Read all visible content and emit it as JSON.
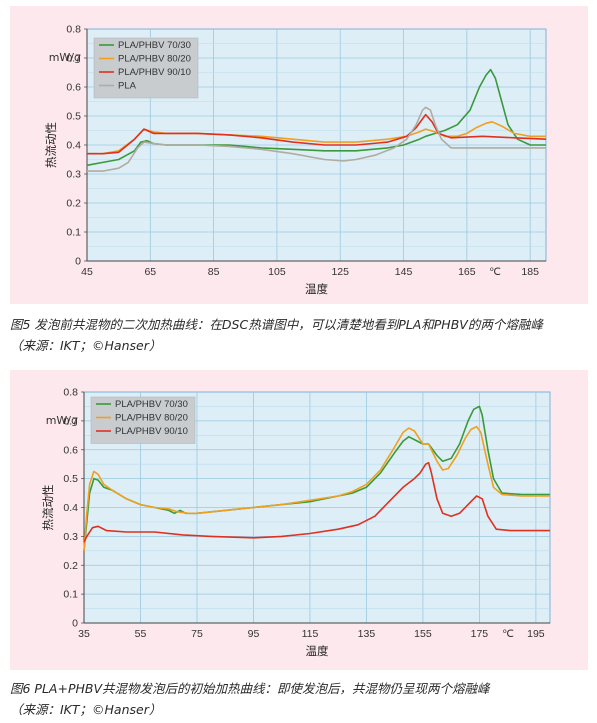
{
  "chart_data": [
    {
      "type": "line",
      "ylabel": "热流动性",
      "unit_label": "mW/g",
      "xlabel": "温度",
      "x_unit_tick": "℃",
      "x_ticks": [
        "45",
        "65",
        "85",
        "105",
        "125",
        "145",
        "165",
        "185"
      ],
      "y_ticks": [
        "0",
        "0.1",
        "0.2",
        "0.3",
        "0.4",
        "0.5",
        "0.6",
        "0.7",
        "0.8"
      ],
      "xlim": [
        45,
        190
      ],
      "ylim": [
        0,
        0.8
      ],
      "grid": true,
      "legend_position": "top-left",
      "series": [
        {
          "name": "PLA/PHBV 70/30",
          "color": "#3a9a3a",
          "points": [
            [
              45,
              0.33
            ],
            [
              50,
              0.34
            ],
            [
              55,
              0.35
            ],
            [
              60,
              0.38
            ],
            [
              62,
              0.41
            ],
            [
              64,
              0.415
            ],
            [
              66,
              0.405
            ],
            [
              70,
              0.4
            ],
            [
              80,
              0.4
            ],
            [
              90,
              0.4
            ],
            [
              100,
              0.39
            ],
            [
              110,
              0.385
            ],
            [
              120,
              0.38
            ],
            [
              130,
              0.38
            ],
            [
              140,
              0.39
            ],
            [
              145,
              0.4
            ],
            [
              150,
              0.42
            ],
            [
              152,
              0.43
            ],
            [
              155,
              0.44
            ],
            [
              158,
              0.45
            ],
            [
              162,
              0.47
            ],
            [
              166,
              0.52
            ],
            [
              169,
              0.6
            ],
            [
              171,
              0.64
            ],
            [
              172.5,
              0.66
            ],
            [
              174,
              0.63
            ],
            [
              176,
              0.55
            ],
            [
              178,
              0.47
            ],
            [
              181,
              0.42
            ],
            [
              185,
              0.4
            ],
            [
              190,
              0.4
            ]
          ]
        },
        {
          "name": "PLA/PHBV 80/20",
          "color": "#f0a020",
          "points": [
            [
              45,
              0.37
            ],
            [
              50,
              0.37
            ],
            [
              55,
              0.38
            ],
            [
              60,
              0.42
            ],
            [
              63,
              0.455
            ],
            [
              66,
              0.445
            ],
            [
              70,
              0.44
            ],
            [
              80,
              0.44
            ],
            [
              90,
              0.435
            ],
            [
              100,
              0.43
            ],
            [
              110,
              0.42
            ],
            [
              120,
              0.41
            ],
            [
              130,
              0.41
            ],
            [
              140,
              0.42
            ],
            [
              146,
              0.43
            ],
            [
              150,
              0.445
            ],
            [
              152,
              0.455
            ],
            [
              155,
              0.445
            ],
            [
              158,
              0.43
            ],
            [
              162,
              0.43
            ],
            [
              165,
              0.44
            ],
            [
              168,
              0.46
            ],
            [
              171,
              0.475
            ],
            [
              173,
              0.48
            ],
            [
              176,
              0.465
            ],
            [
              180,
              0.44
            ],
            [
              185,
              0.43
            ],
            [
              190,
              0.43
            ]
          ]
        },
        {
          "name": "PLA/PHBV 90/10",
          "color": "#e03020",
          "points": [
            [
              45,
              0.37
            ],
            [
              50,
              0.37
            ],
            [
              55,
              0.375
            ],
            [
              60,
              0.42
            ],
            [
              63,
              0.455
            ],
            [
              66,
              0.44
            ],
            [
              70,
              0.44
            ],
            [
              80,
              0.44
            ],
            [
              90,
              0.435
            ],
            [
              100,
              0.425
            ],
            [
              110,
              0.41
            ],
            [
              120,
              0.4
            ],
            [
              130,
              0.4
            ],
            [
              140,
              0.41
            ],
            [
              146,
              0.43
            ],
            [
              149,
              0.46
            ],
            [
              151,
              0.49
            ],
            [
              152,
              0.505
            ],
            [
              154,
              0.48
            ],
            [
              156,
              0.44
            ],
            [
              160,
              0.425
            ],
            [
              170,
              0.43
            ],
            [
              180,
              0.425
            ],
            [
              190,
              0.42
            ]
          ]
        },
        {
          "name": "PLA",
          "color": "#b0aca0",
          "points": [
            [
              45,
              0.31
            ],
            [
              50,
              0.31
            ],
            [
              55,
              0.32
            ],
            [
              58,
              0.34
            ],
            [
              61,
              0.39
            ],
            [
              63,
              0.41
            ],
            [
              66,
              0.405
            ],
            [
              70,
              0.4
            ],
            [
              80,
              0.4
            ],
            [
              90,
              0.395
            ],
            [
              100,
              0.385
            ],
            [
              110,
              0.37
            ],
            [
              120,
              0.35
            ],
            [
              126,
              0.345
            ],
            [
              130,
              0.35
            ],
            [
              136,
              0.365
            ],
            [
              142,
              0.39
            ],
            [
              146,
              0.42
            ],
            [
              149,
              0.47
            ],
            [
              151,
              0.52
            ],
            [
              152,
              0.53
            ],
            [
              153.5,
              0.52
            ],
            [
              155,
              0.47
            ],
            [
              157,
              0.42
            ],
            [
              160,
              0.39
            ],
            [
              170,
              0.39
            ],
            [
              190,
              0.39
            ]
          ]
        }
      ]
    },
    {
      "type": "line",
      "ylabel": "热流动性",
      "unit_label": "mW/g",
      "xlabel": "温度",
      "x_unit_tick": "℃",
      "x_ticks": [
        "35",
        "55",
        "75",
        "95",
        "115",
        "135",
        "155",
        "175",
        "195"
      ],
      "y_ticks": [
        "0",
        "0.1",
        "0.2",
        "0.3",
        "0.4",
        "0.5",
        "0.6",
        "0.7",
        "0.8"
      ],
      "xlim": [
        35,
        200
      ],
      "ylim": [
        0,
        0.8
      ],
      "grid": true,
      "legend_position": "top-left",
      "series": [
        {
          "name": "PLA/PHBV 70/30",
          "color": "#3a9a3a",
          "points": [
            [
              35,
              0.25
            ],
            [
              36,
              0.35
            ],
            [
              37,
              0.45
            ],
            [
              38.5,
              0.5
            ],
            [
              40,
              0.495
            ],
            [
              42,
              0.47
            ],
            [
              45,
              0.46
            ],
            [
              50,
              0.43
            ],
            [
              55,
              0.41
            ],
            [
              60,
              0.4
            ],
            [
              65,
              0.39
            ],
            [
              67,
              0.38
            ],
            [
              69,
              0.39
            ],
            [
              71,
              0.38
            ],
            [
              75,
              0.38
            ],
            [
              85,
              0.39
            ],
            [
              95,
              0.4
            ],
            [
              105,
              0.41
            ],
            [
              115,
              0.42
            ],
            [
              125,
              0.44
            ],
            [
              130,
              0.45
            ],
            [
              135,
              0.47
            ],
            [
              140,
              0.52
            ],
            [
              145,
              0.59
            ],
            [
              148,
              0.63
            ],
            [
              150,
              0.645
            ],
            [
              152,
              0.635
            ],
            [
              155,
              0.62
            ],
            [
              157,
              0.62
            ],
            [
              160,
              0.58
            ],
            [
              162,
              0.56
            ],
            [
              165,
              0.57
            ],
            [
              168,
              0.62
            ],
            [
              171,
              0.7
            ],
            [
              173,
              0.74
            ],
            [
              175,
              0.75
            ],
            [
              176,
              0.72
            ],
            [
              178,
              0.6
            ],
            [
              180,
              0.5
            ],
            [
              183,
              0.45
            ],
            [
              190,
              0.445
            ],
            [
              200,
              0.445
            ]
          ]
        },
        {
          "name": "PLA/PHBV 80/20",
          "color": "#f0a020",
          "points": [
            [
              35,
              0.25
            ],
            [
              36,
              0.38
            ],
            [
              37,
              0.48
            ],
            [
              38.5,
              0.525
            ],
            [
              40,
              0.515
            ],
            [
              42,
              0.48
            ],
            [
              45,
              0.46
            ],
            [
              50,
              0.43
            ],
            [
              55,
              0.41
            ],
            [
              60,
              0.4
            ],
            [
              65,
              0.395
            ],
            [
              68,
              0.385
            ],
            [
              72,
              0.38
            ],
            [
              75,
              0.38
            ],
            [
              85,
              0.39
            ],
            [
              95,
              0.4
            ],
            [
              105,
              0.41
            ],
            [
              115,
              0.425
            ],
            [
              125,
              0.44
            ],
            [
              130,
              0.455
            ],
            [
              135,
              0.48
            ],
            [
              140,
              0.53
            ],
            [
              145,
              0.61
            ],
            [
              148,
              0.66
            ],
            [
              150,
              0.675
            ],
            [
              152,
              0.665
            ],
            [
              155,
              0.62
            ],
            [
              157,
              0.62
            ],
            [
              160,
              0.56
            ],
            [
              162,
              0.53
            ],
            [
              164,
              0.535
            ],
            [
              167,
              0.58
            ],
            [
              170,
              0.64
            ],
            [
              172,
              0.67
            ],
            [
              174,
              0.68
            ],
            [
              175.5,
              0.66
            ],
            [
              178,
              0.55
            ],
            [
              180,
              0.47
            ],
            [
              183,
              0.445
            ],
            [
              190,
              0.44
            ],
            [
              200,
              0.44
            ]
          ]
        },
        {
          "name": "PLA/PHBV 90/10",
          "color": "#e03020",
          "points": [
            [
              35,
              0.28
            ],
            [
              36,
              0.3
            ],
            [
              38,
              0.33
            ],
            [
              40,
              0.335
            ],
            [
              43,
              0.32
            ],
            [
              50,
              0.315
            ],
            [
              60,
              0.315
            ],
            [
              70,
              0.305
            ],
            [
              80,
              0.3
            ],
            [
              95,
              0.295
            ],
            [
              105,
              0.3
            ],
            [
              115,
              0.31
            ],
            [
              125,
              0.325
            ],
            [
              132,
              0.34
            ],
            [
              138,
              0.37
            ],
            [
              143,
              0.42
            ],
            [
              148,
              0.47
            ],
            [
              152,
              0.5
            ],
            [
              154,
              0.52
            ],
            [
              156,
              0.55
            ],
            [
              157,
              0.555
            ],
            [
              158,
              0.52
            ],
            [
              160,
              0.43
            ],
            [
              162,
              0.38
            ],
            [
              165,
              0.37
            ],
            [
              168,
              0.38
            ],
            [
              172,
              0.42
            ],
            [
              174,
              0.44
            ],
            [
              176,
              0.43
            ],
            [
              178,
              0.37
            ],
            [
              181,
              0.325
            ],
            [
              186,
              0.32
            ],
            [
              195,
              0.32
            ],
            [
              200,
              0.32
            ]
          ]
        }
      ]
    }
  ],
  "captions": [
    {
      "line1": "图5 发泡前共混物的二次加热曲线：在DSC热谱图中，可以清楚地看到PLA和PHBV的两个熔融峰",
      "line2": "（来源：IKT；©Hanser）"
    },
    {
      "line1": "图6 PLA+PHBV共混物发泡后的初始加热曲线：即使发泡后，共混物仍呈现两个熔融峰",
      "line2": "（来源：IKT；©Hanser）"
    }
  ]
}
